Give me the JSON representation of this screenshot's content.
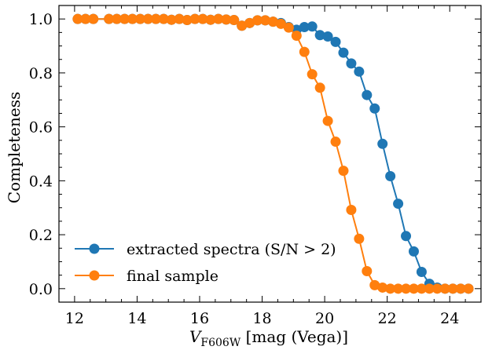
{
  "chart_data": {
    "type": "line",
    "xlabel_main": "V",
    "xlabel_sub": "F606W",
    "xlabel_rest": " [mag (Vega)]",
    "ylabel": "Completeness",
    "xlim": [
      11.5,
      25.0
    ],
    "ylim": [
      -0.05,
      1.05
    ],
    "xticks": [
      12,
      14,
      16,
      18,
      20,
      22,
      24
    ],
    "xtick_labels": [
      "12",
      "14",
      "16",
      "18",
      "20",
      "22",
      "24"
    ],
    "yticks": [
      0.0,
      0.2,
      0.4,
      0.6,
      0.8,
      1.0
    ],
    "ytick_labels": [
      "0.0",
      "0.2",
      "0.4",
      "0.6",
      "0.8",
      "1.0"
    ],
    "legend_position": "bottom-left",
    "series": [
      {
        "name": "extracted spectra (S/N > 2)",
        "color": "#1f77b4",
        "x": [
          12.1,
          12.35,
          12.6,
          13.1,
          13.35,
          13.6,
          13.85,
          14.1,
          14.35,
          14.6,
          14.85,
          15.1,
          15.35,
          15.6,
          15.85,
          16.1,
          16.35,
          16.6,
          16.85,
          17.1,
          17.35,
          17.6,
          17.85,
          18.1,
          18.35,
          18.6,
          18.85,
          19.1,
          19.35,
          19.6,
          19.85,
          20.1,
          20.35,
          20.6,
          20.85,
          21.1,
          21.35,
          21.6,
          21.85,
          22.1,
          22.35,
          22.6,
          22.85,
          23.1,
          23.35,
          23.6,
          23.85,
          24.1,
          24.35,
          24.6
        ],
        "y": [
          1.0,
          1.0,
          1.0,
          1.0,
          1.0,
          1.0,
          1.0,
          1.0,
          1.0,
          1.0,
          1.0,
          0.997,
          1.0,
          0.996,
          1.0,
          1.0,
          0.997,
          1.0,
          0.998,
          0.996,
          0.975,
          0.985,
          0.995,
          0.995,
          0.99,
          0.985,
          0.97,
          0.96,
          0.97,
          0.972,
          0.94,
          0.935,
          0.915,
          0.875,
          0.835,
          0.805,
          0.718,
          0.668,
          0.537,
          0.417,
          0.315,
          0.195,
          0.138,
          0.062,
          0.018,
          0.004,
          0.0,
          0.0,
          0.0,
          0.0
        ]
      },
      {
        "name": "final sample",
        "color": "#ff7f0e",
        "x": [
          12.1,
          12.35,
          12.6,
          13.1,
          13.35,
          13.6,
          13.85,
          14.1,
          14.35,
          14.6,
          14.85,
          15.1,
          15.35,
          15.6,
          15.85,
          16.1,
          16.35,
          16.6,
          16.85,
          17.1,
          17.35,
          17.6,
          17.85,
          18.1,
          18.35,
          18.6,
          18.85,
          19.1,
          19.35,
          19.6,
          19.85,
          20.1,
          20.35,
          20.6,
          20.85,
          21.1,
          21.35,
          21.6,
          21.85,
          22.1,
          22.35,
          22.6,
          22.85,
          23.1,
          23.35,
          23.6,
          23.85,
          24.1,
          24.35,
          24.6
        ],
        "y": [
          1.0,
          1.0,
          1.0,
          1.0,
          1.0,
          1.0,
          1.0,
          1.0,
          1.0,
          1.0,
          1.0,
          0.997,
          1.0,
          0.996,
          1.0,
          1.0,
          0.997,
          1.0,
          0.998,
          0.996,
          0.975,
          0.985,
          0.995,
          0.995,
          0.99,
          0.982,
          0.968,
          0.938,
          0.878,
          0.795,
          0.745,
          0.622,
          0.545,
          0.437,
          0.292,
          0.185,
          0.065,
          0.013,
          0.004,
          0.0,
          0.0,
          0.0,
          0.0,
          0.0,
          0.0,
          0.0,
          0.0,
          0.0,
          0.0,
          0.0
        ]
      }
    ]
  }
}
